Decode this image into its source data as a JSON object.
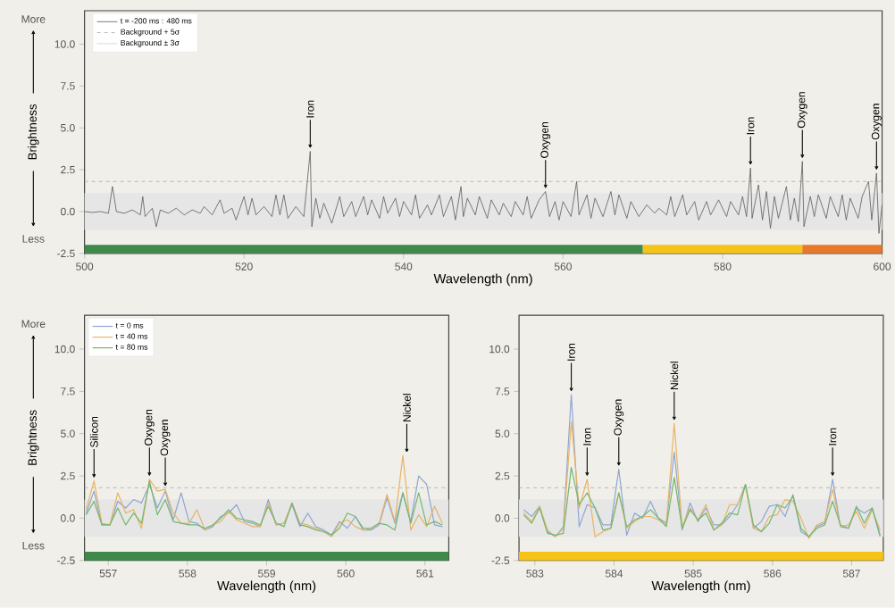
{
  "chart_data": [
    {
      "type": "line",
      "ylabel": "Brightness",
      "xlabel": "Wavelength (nm)",
      "legend": "top left",
      "xlim": [
        500,
        600
      ],
      "ylim": [
        -2.5,
        12
      ],
      "xticks": [
        500,
        520,
        540,
        560,
        580,
        600
      ],
      "yticks": [
        -2.5,
        {
          "value": 0,
          "label": "0.0"
        },
        2.5,
        {
          "value": 5,
          "label": "5.0"
        },
        7.5,
        {
          "value": 10,
          "label": "10.0"
        }
      ],
      "series": [
        {
          "name": "t = -200 ms : 480 ms",
          "color": "#5a5a5a",
          "x": [
            500,
            501,
            502,
            503,
            503.5,
            504,
            505,
            506,
            507,
            507.3,
            507.6,
            508.5,
            509,
            509.5,
            510.5,
            511.5,
            512.5,
            513.5,
            514.5,
            515,
            516,
            517,
            517.5,
            518.5,
            519,
            520,
            520.5,
            521,
            521.5,
            522.5,
            523.5,
            524,
            524.5,
            525,
            525.5,
            526.5,
            527.5,
            528.3,
            528.5,
            529,
            529.5,
            530,
            531,
            532,
            532.5,
            533.5,
            534,
            535,
            535.5,
            536,
            537,
            537.5,
            538,
            539,
            539.5,
            540,
            541,
            541.5,
            542,
            543,
            543.5,
            544.5,
            545,
            546,
            546.5,
            547.2,
            547.5,
            548,
            549,
            549.5,
            550.5,
            551,
            552,
            552.5,
            553.5,
            554,
            555,
            555.5,
            556,
            557,
            557.8,
            558.3,
            559,
            559.5,
            560,
            561,
            561.7,
            562,
            563,
            563.5,
            564,
            565,
            566,
            566.5,
            567,
            568,
            568.5,
            569.5,
            570.5,
            571.5,
            572,
            573,
            573.5,
            574,
            575,
            575.5,
            576.5,
            577,
            578,
            578.5,
            579.5,
            580.5,
            581,
            582,
            582.5,
            583,
            583.5,
            583.7,
            584.5,
            585,
            585.5,
            586,
            586.5,
            587,
            588,
            588.5,
            589,
            589.5,
            590,
            590.2,
            591,
            591.5,
            592,
            593,
            593.5,
            594.5,
            595,
            595.5,
            596,
            597,
            597.5,
            598.3,
            598.7,
            599.3,
            599.6,
            600
          ],
          "values": [
            0,
            -0.05,
            0,
            -0.1,
            1.5,
            0,
            -0.1,
            0.1,
            -0.2,
            0.9,
            -0.3,
            0.2,
            -0.9,
            0.1,
            -0.1,
            0.2,
            -0.2,
            0.1,
            -0.1,
            0.3,
            -0.2,
            0.7,
            -0.1,
            0.2,
            -0.5,
            0.9,
            -0.2,
            0.8,
            -0.2,
            0.3,
            -0.3,
            1.0,
            -0.2,
            1.0,
            -0.4,
            0.3,
            -0.3,
            3.6,
            -0.9,
            0.8,
            -0.4,
            0.5,
            -0.7,
            0.9,
            -0.3,
            0.6,
            -0.3,
            0.9,
            -0.2,
            0.7,
            -0.4,
            0.9,
            -0.1,
            0.8,
            -0.3,
            0.6,
            -0.2,
            1.0,
            -0.4,
            0.4,
            -0.2,
            1.0,
            -0.3,
            0.9,
            -0.5,
            1.5,
            -0.3,
            0.8,
            -0.2,
            0.9,
            -0.4,
            0.7,
            -0.2,
            0.5,
            -0.3,
            0.6,
            -0.2,
            0.9,
            -0.4,
            0.7,
            1.2,
            -0.3,
            0.6,
            -0.5,
            0.6,
            -0.3,
            1.8,
            -0.2,
            1.0,
            -0.4,
            0.8,
            -0.3,
            1.2,
            -0.2,
            1.0,
            -0.4,
            0.6,
            -0.3,
            0.4,
            -0.1,
            0.2,
            -0.2,
            0.9,
            -0.3,
            1.0,
            -0.2,
            0.6,
            -0.5,
            0.6,
            -0.2,
            0.7,
            -0.3,
            0.6,
            -0.2,
            0.9,
            -0.3,
            2.6,
            -0.4,
            1.6,
            -0.5,
            1.2,
            -1.0,
            0.9,
            -0.4,
            1.5,
            -0.5,
            0.8,
            -0.6,
            3.0,
            -0.9,
            0.9,
            -0.3,
            1.0,
            -0.4,
            0.9,
            -0.3,
            1.0,
            -0.5,
            0.8,
            -0.4,
            0.9,
            1.8,
            -0.5,
            2.3,
            -1.3,
            0.4
          ]
        }
      ],
      "ref_lines": [
        {
          "axis": "y",
          "value": 1.8,
          "label": "Background + 5σ",
          "color": "#a8a8a8",
          "line_style": "dashed"
        }
      ],
      "bands": [
        {
          "axis": "y",
          "from": -1.1,
          "to": 1.1,
          "label": "Background ± 3σ",
          "color": "#e6e6e6"
        }
      ],
      "annotations": [
        "More",
        "Less",
        {
          "text": "Iron",
          "x": 528.3,
          "y": 3.6
        },
        {
          "text": "Oxygen",
          "x": 557.8,
          "y": 1.2
        },
        {
          "text": "Iron",
          "x": 583.5,
          "y": 2.6
        },
        {
          "text": "Oxygen",
          "x": 590,
          "y": 3.0
        },
        {
          "text": "Oxygen",
          "x": 599.3,
          "y": 2.3
        }
      ]
    },
    {
      "type": "line",
      "ylabel": "Brightness",
      "xlabel": "Wavelength (nm)",
      "legend": "top left",
      "xlim": [
        556.7,
        561.3
      ],
      "ylim": [
        -2.5,
        12
      ],
      "xticks": [
        557,
        558,
        559,
        560,
        561
      ],
      "yticks": [
        -2.5,
        {
          "value": 0,
          "label": "0.0"
        },
        2.5,
        {
          "value": 5,
          "label": "5.0"
        },
        7.5,
        {
          "value": 10,
          "label": "10.0"
        }
      ],
      "x": [
        556.72,
        556.82,
        556.92,
        557.02,
        557.12,
        557.22,
        557.32,
        557.42,
        557.52,
        557.62,
        557.72,
        557.82,
        557.92,
        558.02,
        558.12,
        558.22,
        558.32,
        558.42,
        558.52,
        558.62,
        558.72,
        558.82,
        558.92,
        559.02,
        559.12,
        559.22,
        559.32,
        559.42,
        559.52,
        559.62,
        559.72,
        559.82,
        559.92,
        560.02,
        560.12,
        560.22,
        560.32,
        560.42,
        560.52,
        560.62,
        560.72,
        560.82,
        560.92,
        561.02,
        561.12,
        561.22
      ],
      "series": [
        {
          "name": "t = 0 ms",
          "color": "#8fa6d2",
          "values": [
            0.3,
            1.6,
            -0.4,
            -0.4,
            1.0,
            0.6,
            1.1,
            0.9,
            2.0,
            0.6,
            1.6,
            -0.1,
            1.5,
            -0.2,
            -0.3,
            -0.7,
            -0.5,
            0.1,
            0.3,
            0.8,
            -0.2,
            -0.3,
            -0.5,
            1.1,
            -0.4,
            -0.3,
            0.8,
            -0.5,
            0.3,
            -0.5,
            -0.7,
            -1.0,
            -0.2,
            -0.6,
            0.1,
            -0.7,
            -0.7,
            -0.4,
            1.2,
            -0.3,
            1.5,
            -0.2,
            2.5,
            2.0,
            -0.4,
            -0.5
          ]
        },
        {
          "name": "t = 40 ms",
          "color": "#e8b466",
          "values": [
            0.5,
            2.2,
            -0.3,
            -0.4,
            1.5,
            0.3,
            0.5,
            -0.6,
            2.3,
            1.6,
            1.7,
            0.3,
            -0.3,
            -0.3,
            0.5,
            -0.7,
            -0.4,
            -0.2,
            0.4,
            -0.1,
            -0.3,
            -0.5,
            -0.5,
            0.9,
            -0.4,
            -0.3,
            0.9,
            -0.3,
            -0.4,
            -0.6,
            -0.8,
            -1.1,
            -0.3,
            -0.1,
            -0.5,
            -0.7,
            -0.6,
            -0.3,
            1.4,
            -0.2,
            3.7,
            -0.7,
            0.2,
            -0.5,
            0.7,
            -0.3
          ]
        },
        {
          "name": "t = 80 ms",
          "color": "#72b86e",
          "values": [
            0.2,
            1.0,
            -0.4,
            -0.4,
            0.6,
            -0.4,
            0.3,
            -0.3,
            2.2,
            0.2,
            1.1,
            -0.2,
            -0.3,
            -0.4,
            -0.4,
            -0.6,
            -0.4,
            0.0,
            0.5,
            0.0,
            -0.1,
            -0.2,
            -0.4,
            0.7,
            -0.3,
            -0.5,
            0.9,
            -0.4,
            -0.5,
            -0.7,
            -0.8,
            -1.0,
            -0.6,
            0.3,
            0.1,
            -0.6,
            -0.6,
            -0.3,
            -0.4,
            -0.7,
            1.5,
            -0.3,
            1.5,
            -0.4,
            -0.2,
            -0.4
          ]
        }
      ],
      "ref_lines": [
        {
          "axis": "y",
          "value": 1.8,
          "color": "#a8a8a8",
          "line_style": "dashed"
        }
      ],
      "bands": [
        {
          "axis": "y",
          "from": -1.1,
          "to": 1.1,
          "color": "#e6e6e6"
        }
      ],
      "annotations": [
        "More",
        "Less",
        {
          "text": "Silicon",
          "x": 556.82,
          "y": 2.2
        },
        {
          "text": "Oxygen",
          "x": 557.52,
          "y": 2.3
        },
        {
          "text": "Oxygen",
          "x": 557.72,
          "y": 1.7
        },
        {
          "text": "Nickel",
          "x": 560.77,
          "y": 3.7
        }
      ]
    },
    {
      "type": "line",
      "xlabel": "Wavelength (nm)",
      "xlim": [
        582.8,
        587.4
      ],
      "ylim": [
        -2.5,
        12
      ],
      "xticks": [
        583,
        584,
        585,
        586,
        587
      ],
      "yticks": [
        -2.5,
        {
          "value": 0,
          "label": "0.0"
        },
        2.5,
        {
          "value": 5,
          "label": "5.0"
        },
        7.5,
        {
          "value": 10,
          "label": "10.0"
        }
      ],
      "x": [
        582.86,
        582.96,
        583.06,
        583.16,
        583.26,
        583.36,
        583.46,
        583.56,
        583.66,
        583.76,
        583.86,
        583.96,
        584.06,
        584.16,
        584.26,
        584.36,
        584.46,
        584.56,
        584.66,
        584.76,
        584.86,
        584.96,
        585.06,
        585.16,
        585.26,
        585.36,
        585.46,
        585.56,
        585.66,
        585.76,
        585.86,
        585.96,
        586.06,
        586.16,
        586.26,
        586.36,
        586.46,
        586.56,
        586.66,
        586.76,
        586.86,
        586.96,
        587.06,
        587.16,
        587.26,
        587.36
      ],
      "series": [
        {
          "color": "#8fa6d2",
          "values": [
            0.5,
            0.1,
            0.7,
            -0.8,
            -1.1,
            -0.5,
            7.3,
            -0.5,
            0.8,
            0.6,
            -0.4,
            -0.4,
            2.9,
            -1.0,
            0.3,
            0.0,
            1.0,
            0.0,
            -0.3,
            3.9,
            -0.7,
            0.9,
            -0.2,
            0.6,
            -0.4,
            -0.4,
            0.1,
            0.8,
            2.0,
            -0.6,
            -0.2,
            0.7,
            0.8,
            0.1,
            1.4,
            -0.8,
            -1.1,
            -0.5,
            -0.3,
            2.3,
            -0.5,
            -0.6,
            0.6,
            0.3,
            0.6,
            -1.1
          ]
        },
        {
          "color": "#e8b466",
          "values": [
            0.3,
            -0.2,
            0.7,
            -0.7,
            -1.1,
            -0.6,
            5.7,
            0.6,
            2.3,
            -1.1,
            -0.8,
            -0.6,
            1.5,
            -0.6,
            -0.2,
            0.1,
            0.1,
            -0.1,
            -0.4,
            5.6,
            -0.5,
            0.6,
            -0.1,
            0.8,
            -0.7,
            -0.4,
            0.8,
            0.8,
            1.9,
            -0.6,
            -0.8,
            0.1,
            0.2,
            1.1,
            1.0,
            0.0,
            -1.2,
            -0.4,
            -0.2,
            1.7,
            -0.5,
            -0.4,
            0.4,
            -0.6,
            0.5,
            -0.7
          ]
        },
        {
          "color": "#72b86e",
          "values": [
            0.2,
            -0.3,
            0.6,
            -0.9,
            -1.0,
            -0.9,
            3.0,
            0.8,
            1.5,
            0.6,
            -0.7,
            -0.6,
            1.5,
            -0.5,
            -0.1,
            0.1,
            0.5,
            0.0,
            -0.5,
            2.4,
            -0.6,
            0.5,
            -0.1,
            0.3,
            -0.7,
            -0.3,
            0.3,
            0.2,
            2.0,
            -0.4,
            -0.8,
            -0.3,
            0.8,
            0.6,
            1.3,
            -0.6,
            -1.1,
            -0.6,
            -0.4,
            1.0,
            -0.4,
            -0.6,
            0.7,
            -0.3,
            0.6,
            -1.0
          ]
        }
      ],
      "ref_lines": [
        {
          "axis": "y",
          "value": 1.8,
          "color": "#a8a8a8",
          "line_style": "dashed"
        }
      ],
      "bands": [
        {
          "axis": "y",
          "from": -1.1,
          "to": 1.1,
          "color": "#e6e6e6"
        }
      ],
      "annotations": [
        {
          "text": "Iron",
          "x": 583.46,
          "y": 7.3
        },
        {
          "text": "Iron",
          "x": 583.66,
          "y": 2.3
        },
        {
          "text": "Oxygen",
          "x": 584.06,
          "y": 2.9
        },
        {
          "text": "Nickel",
          "x": 584.76,
          "y": 5.6
        },
        {
          "text": "Iron",
          "x": 586.76,
          "y": 2.3
        }
      ]
    }
  ]
}
